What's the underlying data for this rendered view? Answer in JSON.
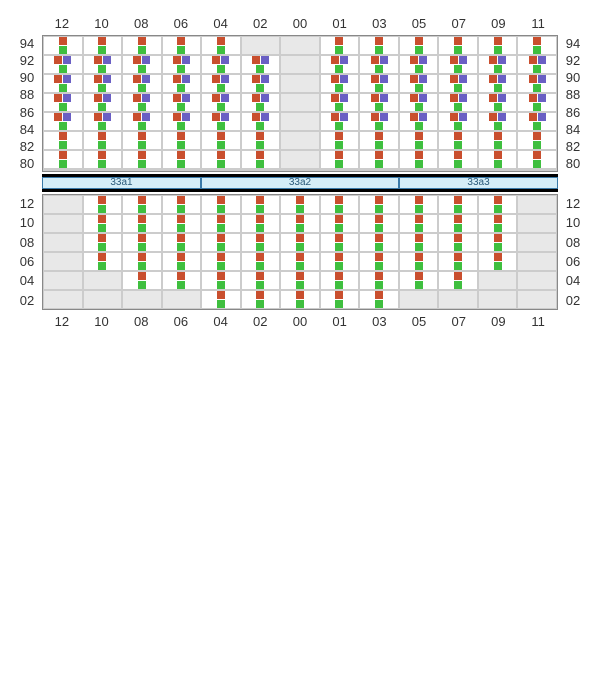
{
  "colors": {
    "orange": "#c94f2e",
    "green": "#3fbf3f",
    "purple": "#6a5fc4",
    "cell_active_bg": "#ffffff",
    "cell_empty_bg": "#e8e8e8",
    "grid_border": "#888888",
    "section_bg": "#d4edf7",
    "section_border": "#3a7aa8",
    "section_text": "#2a5a7a",
    "bar_border": "#000000"
  },
  "top": {
    "col_labels": [
      "12",
      "10",
      "08",
      "06",
      "04",
      "02",
      "00",
      "01",
      "03",
      "05",
      "07",
      "09",
      "11"
    ],
    "row_labels": [
      "94",
      "92",
      "90",
      "88",
      "86",
      "84",
      "82",
      "80"
    ],
    "cells": [
      [
        "og",
        "og",
        "og",
        "og",
        "og",
        "",
        "",
        "og",
        "og",
        "og",
        "og",
        "og",
        "og"
      ],
      [
        "ogp",
        "ogp",
        "ogp",
        "ogp",
        "ogp",
        "ogp",
        "",
        "ogp",
        "ogp",
        "ogp",
        "ogp",
        "ogp",
        "ogp"
      ],
      [
        "ogp",
        "ogp",
        "ogp",
        "ogp",
        "ogp",
        "ogp",
        "",
        "ogp",
        "ogp",
        "ogp",
        "ogp",
        "ogp",
        "ogp"
      ],
      [
        "ogp",
        "ogp",
        "ogp",
        "ogp",
        "ogp",
        "ogp",
        "",
        "ogp",
        "ogp",
        "ogp",
        "ogp",
        "ogp",
        "ogp"
      ],
      [
        "ogp",
        "ogp",
        "ogp",
        "ogp",
        "ogp",
        "ogp",
        "",
        "ogp",
        "ogp",
        "ogp",
        "ogp",
        "ogp",
        "ogp"
      ],
      [
        "og",
        "og",
        "og",
        "og",
        "og",
        "og",
        "",
        "og",
        "og",
        "og",
        "og",
        "og",
        "og"
      ],
      [
        "og",
        "og",
        "og",
        "og",
        "og",
        "og",
        "",
        "og",
        "og",
        "og",
        "og",
        "og",
        "og"
      ],
      [
        "",
        "",
        "",
        "",
        "",
        "",
        "",
        "",
        "",
        "",
        "",
        "",
        ""
      ]
    ]
  },
  "sections": [
    {
      "label": "33a1",
      "span": 4
    },
    {
      "label": "33a2",
      "span": 5
    },
    {
      "label": "33a3",
      "span": 4
    }
  ],
  "bottom": {
    "col_labels_top": null,
    "row_labels": [
      "12",
      "10",
      "08",
      "06",
      "04",
      "02"
    ],
    "col_labels_bottom": [
      "12",
      "10",
      "08",
      "06",
      "04",
      "02",
      "00",
      "01",
      "03",
      "05",
      "07",
      "09",
      "11"
    ],
    "cells": [
      [
        "",
        "og",
        "og",
        "og",
        "og",
        "og",
        "og",
        "og",
        "og",
        "og",
        "og",
        "og",
        ""
      ],
      [
        "",
        "og",
        "og",
        "og",
        "og",
        "og",
        "og",
        "og",
        "og",
        "og",
        "og",
        "og",
        ""
      ],
      [
        "",
        "og",
        "og",
        "og",
        "og",
        "og",
        "og",
        "og",
        "og",
        "og",
        "og",
        "og",
        ""
      ],
      [
        "",
        "og",
        "og",
        "og",
        "og",
        "og",
        "og",
        "og",
        "og",
        "og",
        "og",
        "og",
        ""
      ],
      [
        "",
        "",
        "og",
        "og",
        "og",
        "og",
        "og",
        "og",
        "og",
        "og",
        "og",
        "",
        ""
      ],
      [
        "",
        "",
        "",
        "",
        "og",
        "og",
        "og",
        "og",
        "og",
        "",
        "",
        "",
        ""
      ]
    ]
  },
  "layout": {
    "top_row_height": 34,
    "bottom_row_height": 42
  }
}
